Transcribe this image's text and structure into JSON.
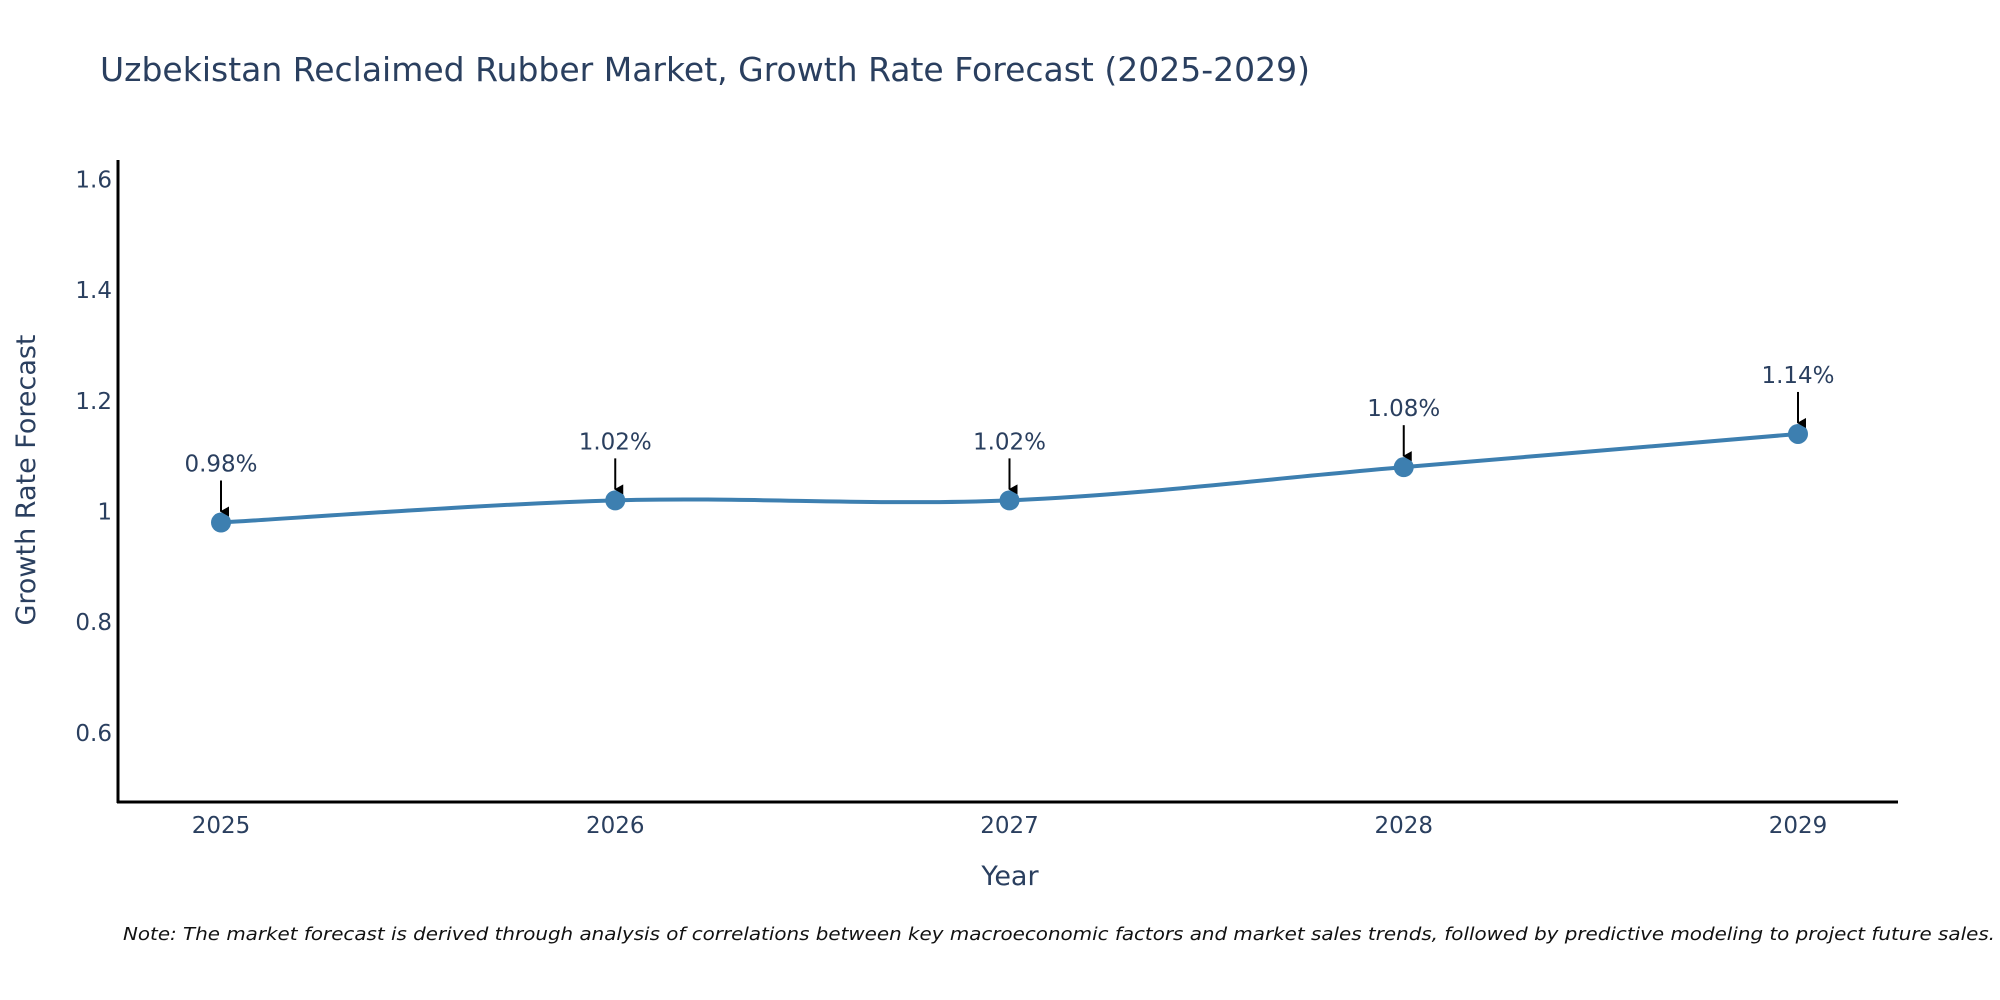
{
  "chart_data": {
    "type": "line",
    "title": "Uzbekistan Reclaimed Rubber Market, Growth Rate Forecast (2025-2029)",
    "xlabel": "Year",
    "ylabel": "Growth Rate Forecast",
    "categories": [
      "2025",
      "2026",
      "2027",
      "2028",
      "2029"
    ],
    "series": [
      {
        "name": "Growth Rate Forecast",
        "values": [
          0.98,
          1.02,
          1.02,
          1.08,
          1.14
        ],
        "labels": [
          "0.98%",
          "1.02%",
          "1.02%",
          "1.08%",
          "1.14%"
        ],
        "color": "#3d7fb0"
      }
    ],
    "ylim": [
      0.475,
      1.635
    ],
    "yticks": [
      0.6,
      0.8,
      1.0,
      1.2,
      1.4,
      1.6
    ],
    "ytick_labels": [
      "0.6",
      "0.8",
      "1",
      "1.2",
      "1.4",
      "1.6"
    ],
    "grid": false,
    "legend": "none",
    "annotation_arrow_color": "#000000",
    "note": "Note: The market forecast is derived through analysis of correlations between key macroeconomic factors and market sales trends, followed by predictive modeling to project future sales."
  }
}
